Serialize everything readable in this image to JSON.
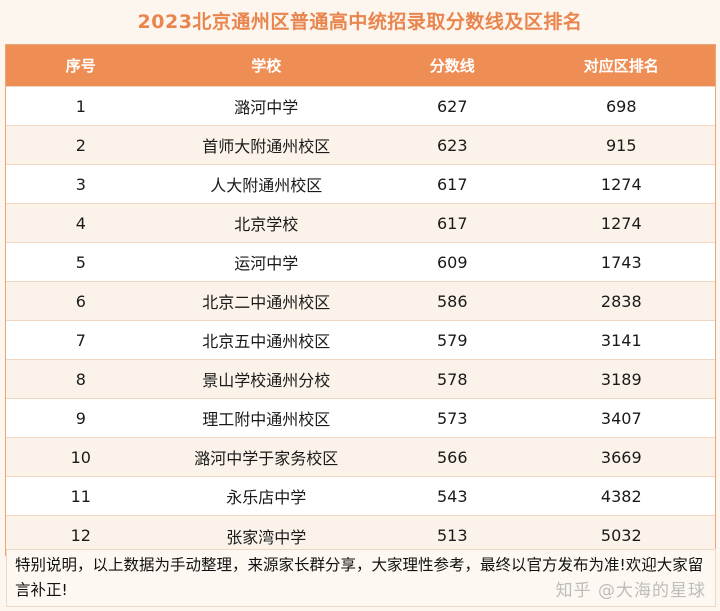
{
  "title": "2023北京通州区普通高中统招录取分数线及区排名",
  "headers": [
    "序号",
    "学校",
    "分数线",
    "对应区排名"
  ],
  "rows": [
    [
      "1",
      "潞河中学",
      "627",
      "698"
    ],
    [
      "2",
      "首师大附通州校区",
      "623",
      "915"
    ],
    [
      "3",
      "人大附通州校区",
      "617",
      "1274"
    ],
    [
      "4",
      "北京学校",
      "617",
      "1274"
    ],
    [
      "5",
      "运河中学",
      "609",
      "1743"
    ],
    [
      "6",
      "北京二中通州校区",
      "586",
      "2838"
    ],
    [
      "7",
      "北京五中通州校区",
      "579",
      "3141"
    ],
    [
      "8",
      "景山学校通州分校",
      "578",
      "3189"
    ],
    [
      "9",
      "理工附中通州校区",
      "573",
      "3407"
    ],
    [
      "10",
      "潞河中学于家务校区",
      "566",
      "3669"
    ],
    [
      "11",
      "永乐店中学",
      "543",
      "4382"
    ],
    [
      "12",
      "张家湾中学",
      "513",
      "5032"
    ]
  ],
  "note": "特别说明，以上数据为手动整理，来源家长群分享，大家理性参考，最终以官方发布为准!欢迎大家留言补正!",
  "watermark": "知乎 @大海的星球"
}
